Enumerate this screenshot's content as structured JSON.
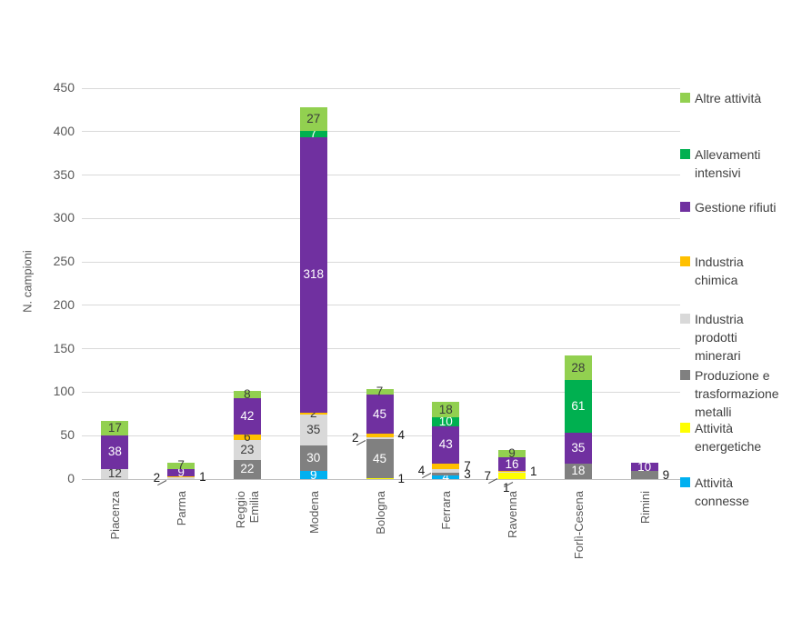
{
  "chart_data": {
    "type": "bar",
    "stacked": true,
    "title": "",
    "xlabel": "",
    "ylabel": "N. campioni",
    "ylim": [
      0,
      450
    ],
    "yticks": [
      0,
      50,
      100,
      150,
      200,
      250,
      300,
      350,
      400,
      450
    ],
    "grid": true,
    "legend_position": "right",
    "categories": [
      "Piacenza",
      "Parma",
      "Reggio Emilia",
      "Modena",
      "Bologna",
      "Ferrara",
      "Ravenna",
      "Forlì-Cesena",
      "Rimini"
    ],
    "category_label_lines": [
      [
        "Piacenza"
      ],
      [
        "Parma"
      ],
      [
        "Reggio",
        "Emilia"
      ],
      [
        "Modena"
      ],
      [
        "Bologna"
      ],
      [
        "Ferrara"
      ],
      [
        "Ravenna"
      ],
      [
        "Forlì-Cesena"
      ],
      [
        "Rimini"
      ]
    ],
    "series": [
      {
        "name": "Attività connesse",
        "color": "#00b0f0",
        "label_text": "light",
        "values": [
          0,
          0,
          0,
          9,
          0,
          4,
          0,
          0,
          0
        ]
      },
      {
        "name": "Attività energetiche",
        "color": "#ffff00",
        "label_text": "dark",
        "values": [
          0,
          0,
          0,
          0,
          1,
          0,
          7,
          0,
          0
        ]
      },
      {
        "name": "Produzione e trasformazione metalli",
        "color": "#808080",
        "label_text": "light",
        "values": [
          0,
          0,
          22,
          30,
          45,
          3,
          0,
          18,
          9
        ]
      },
      {
        "name": "Industria prodotti minerari",
        "color": "#d9d9d9",
        "label_text": "dark",
        "values": [
          12,
          2,
          23,
          35,
          2,
          4,
          1,
          0,
          0
        ]
      },
      {
        "name": "Industria chimica",
        "color": "#ffc000",
        "label_text": "dark",
        "values": [
          0,
          1,
          6,
          2,
          4,
          7,
          1,
          0,
          0
        ]
      },
      {
        "name": "Gestione rifiuti",
        "color": "#7030a0",
        "label_text": "light",
        "values": [
          38,
          9,
          42,
          318,
          45,
          43,
          16,
          35,
          10
        ]
      },
      {
        "name": "Allevamenti intensivi",
        "color": "#00b050",
        "label_text": "light",
        "values": [
          0,
          0,
          0,
          7,
          0,
          10,
          0,
          61,
          0
        ]
      },
      {
        "name": "Altre attività",
        "color": "#92d050",
        "label_text": "dark",
        "values": [
          17,
          7,
          8,
          27,
          7,
          18,
          9,
          28,
          0
        ]
      }
    ],
    "label_callouts": [
      {
        "category": "Parma",
        "series": "Industria prodotti minerari",
        "side": "left"
      },
      {
        "category": "Parma",
        "series": "Industria chimica",
        "side": "right"
      },
      {
        "category": "Bologna",
        "series": "Industria prodotti minerari",
        "side": "left"
      },
      {
        "category": "Bologna",
        "series": "Industria chimica",
        "side": "right"
      },
      {
        "category": "Bologna",
        "series": "Attività energetiche",
        "side": "right"
      },
      {
        "category": "Ferrara",
        "series": "Industria prodotti minerari",
        "side": "left"
      },
      {
        "category": "Ferrara",
        "series": "Produzione e trasformazione metalli",
        "side": "right"
      },
      {
        "category": "Ferrara",
        "series": "Industria chimica",
        "side": "right"
      },
      {
        "category": "Ravenna",
        "series": "Attività energetiche",
        "side": "left"
      },
      {
        "category": "Ravenna",
        "series": "Industria prodotti minerari",
        "side": "below"
      },
      {
        "category": "Ravenna",
        "series": "Industria chimica",
        "side": "right"
      },
      {
        "category": "Rimini",
        "series": "Produzione e trasformazione metalli",
        "side": "right"
      }
    ],
    "legend": [
      {
        "label": "Altre attività",
        "lines": [
          "Altre attività"
        ],
        "color": "#92d050"
      },
      {
        "label": "Allevamenti intensivi",
        "lines": [
          "Allevamenti",
          "intensivi"
        ],
        "color": "#00b050"
      },
      {
        "label": "Gestione rifiuti",
        "lines": [
          "Gestione rifiuti"
        ],
        "color": "#7030a0"
      },
      {
        "label": "Industria chimica",
        "lines": [
          "Industria",
          "chimica"
        ],
        "color": "#ffc000"
      },
      {
        "label": "Industria prodotti minerari",
        "lines": [
          "Industria",
          "prodotti",
          "minerari"
        ],
        "color": "#d9d9d9"
      },
      {
        "label": "Produzione e trasformazione metalli",
        "lines": [
          "Produzione e",
          "trasformazione",
          "metalli"
        ],
        "color": "#808080"
      },
      {
        "label": "Attività energetiche",
        "lines": [
          "Attività",
          "energetiche"
        ],
        "color": "#ffff00"
      },
      {
        "label": "Attività connesse",
        "lines": [
          "Attività",
          "connesse"
        ],
        "color": "#00b0f0"
      }
    ],
    "colors": {
      "grid": "#d9d9d9",
      "axis_text": "#595959",
      "legend_text": "#404040",
      "background": "#ffffff"
    }
  }
}
